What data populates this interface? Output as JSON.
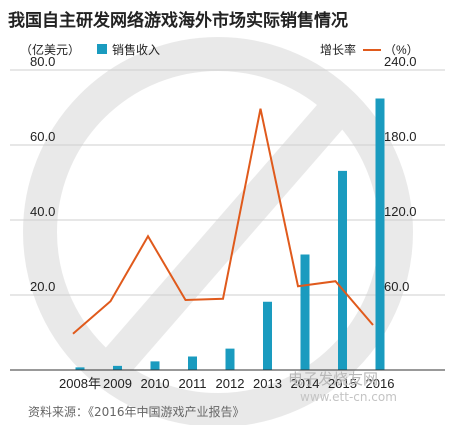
{
  "chart_data": {
    "type": "bar+line",
    "title": "我国自主研发网络游戏海外市场实际销售情况",
    "categories": [
      "2008年",
      "2009",
      "2010",
      "2011",
      "2012",
      "2013",
      "2014",
      "2015",
      "2016"
    ],
    "left_axis": {
      "unit_label": "（亿美元）",
      "ticks": [
        "80.0",
        "60.0",
        "40.0",
        "20.0"
      ],
      "range": [
        0,
        80
      ]
    },
    "right_axis": {
      "unit_label": "（%）",
      "ticks": [
        "240.0",
        "180.0",
        "120.0",
        "60.0"
      ],
      "range": [
        0,
        240
      ]
    },
    "series": [
      {
        "name": "销售收入",
        "kind": "bar",
        "axis": "left",
        "color": "#1a9bbf",
        "values": [
          0.7,
          1.1,
          2.3,
          3.6,
          5.7,
          18.2,
          30.8,
          53.1,
          72.4
        ]
      },
      {
        "name": "增长率",
        "kind": "line",
        "axis": "right",
        "color": "#e05a1c",
        "values": [
          29,
          55,
          107,
          56,
          57,
          209,
          67,
          71,
          36
        ]
      }
    ],
    "legend": {
      "left_entry": "销售收入",
      "right_entry": "增长率"
    },
    "grid": true,
    "source": "资料来源：《2016年中国游戏产业报告》"
  },
  "watermark": {
    "text": "电子发烧友网",
    "url": "www.ett-cn.com"
  }
}
